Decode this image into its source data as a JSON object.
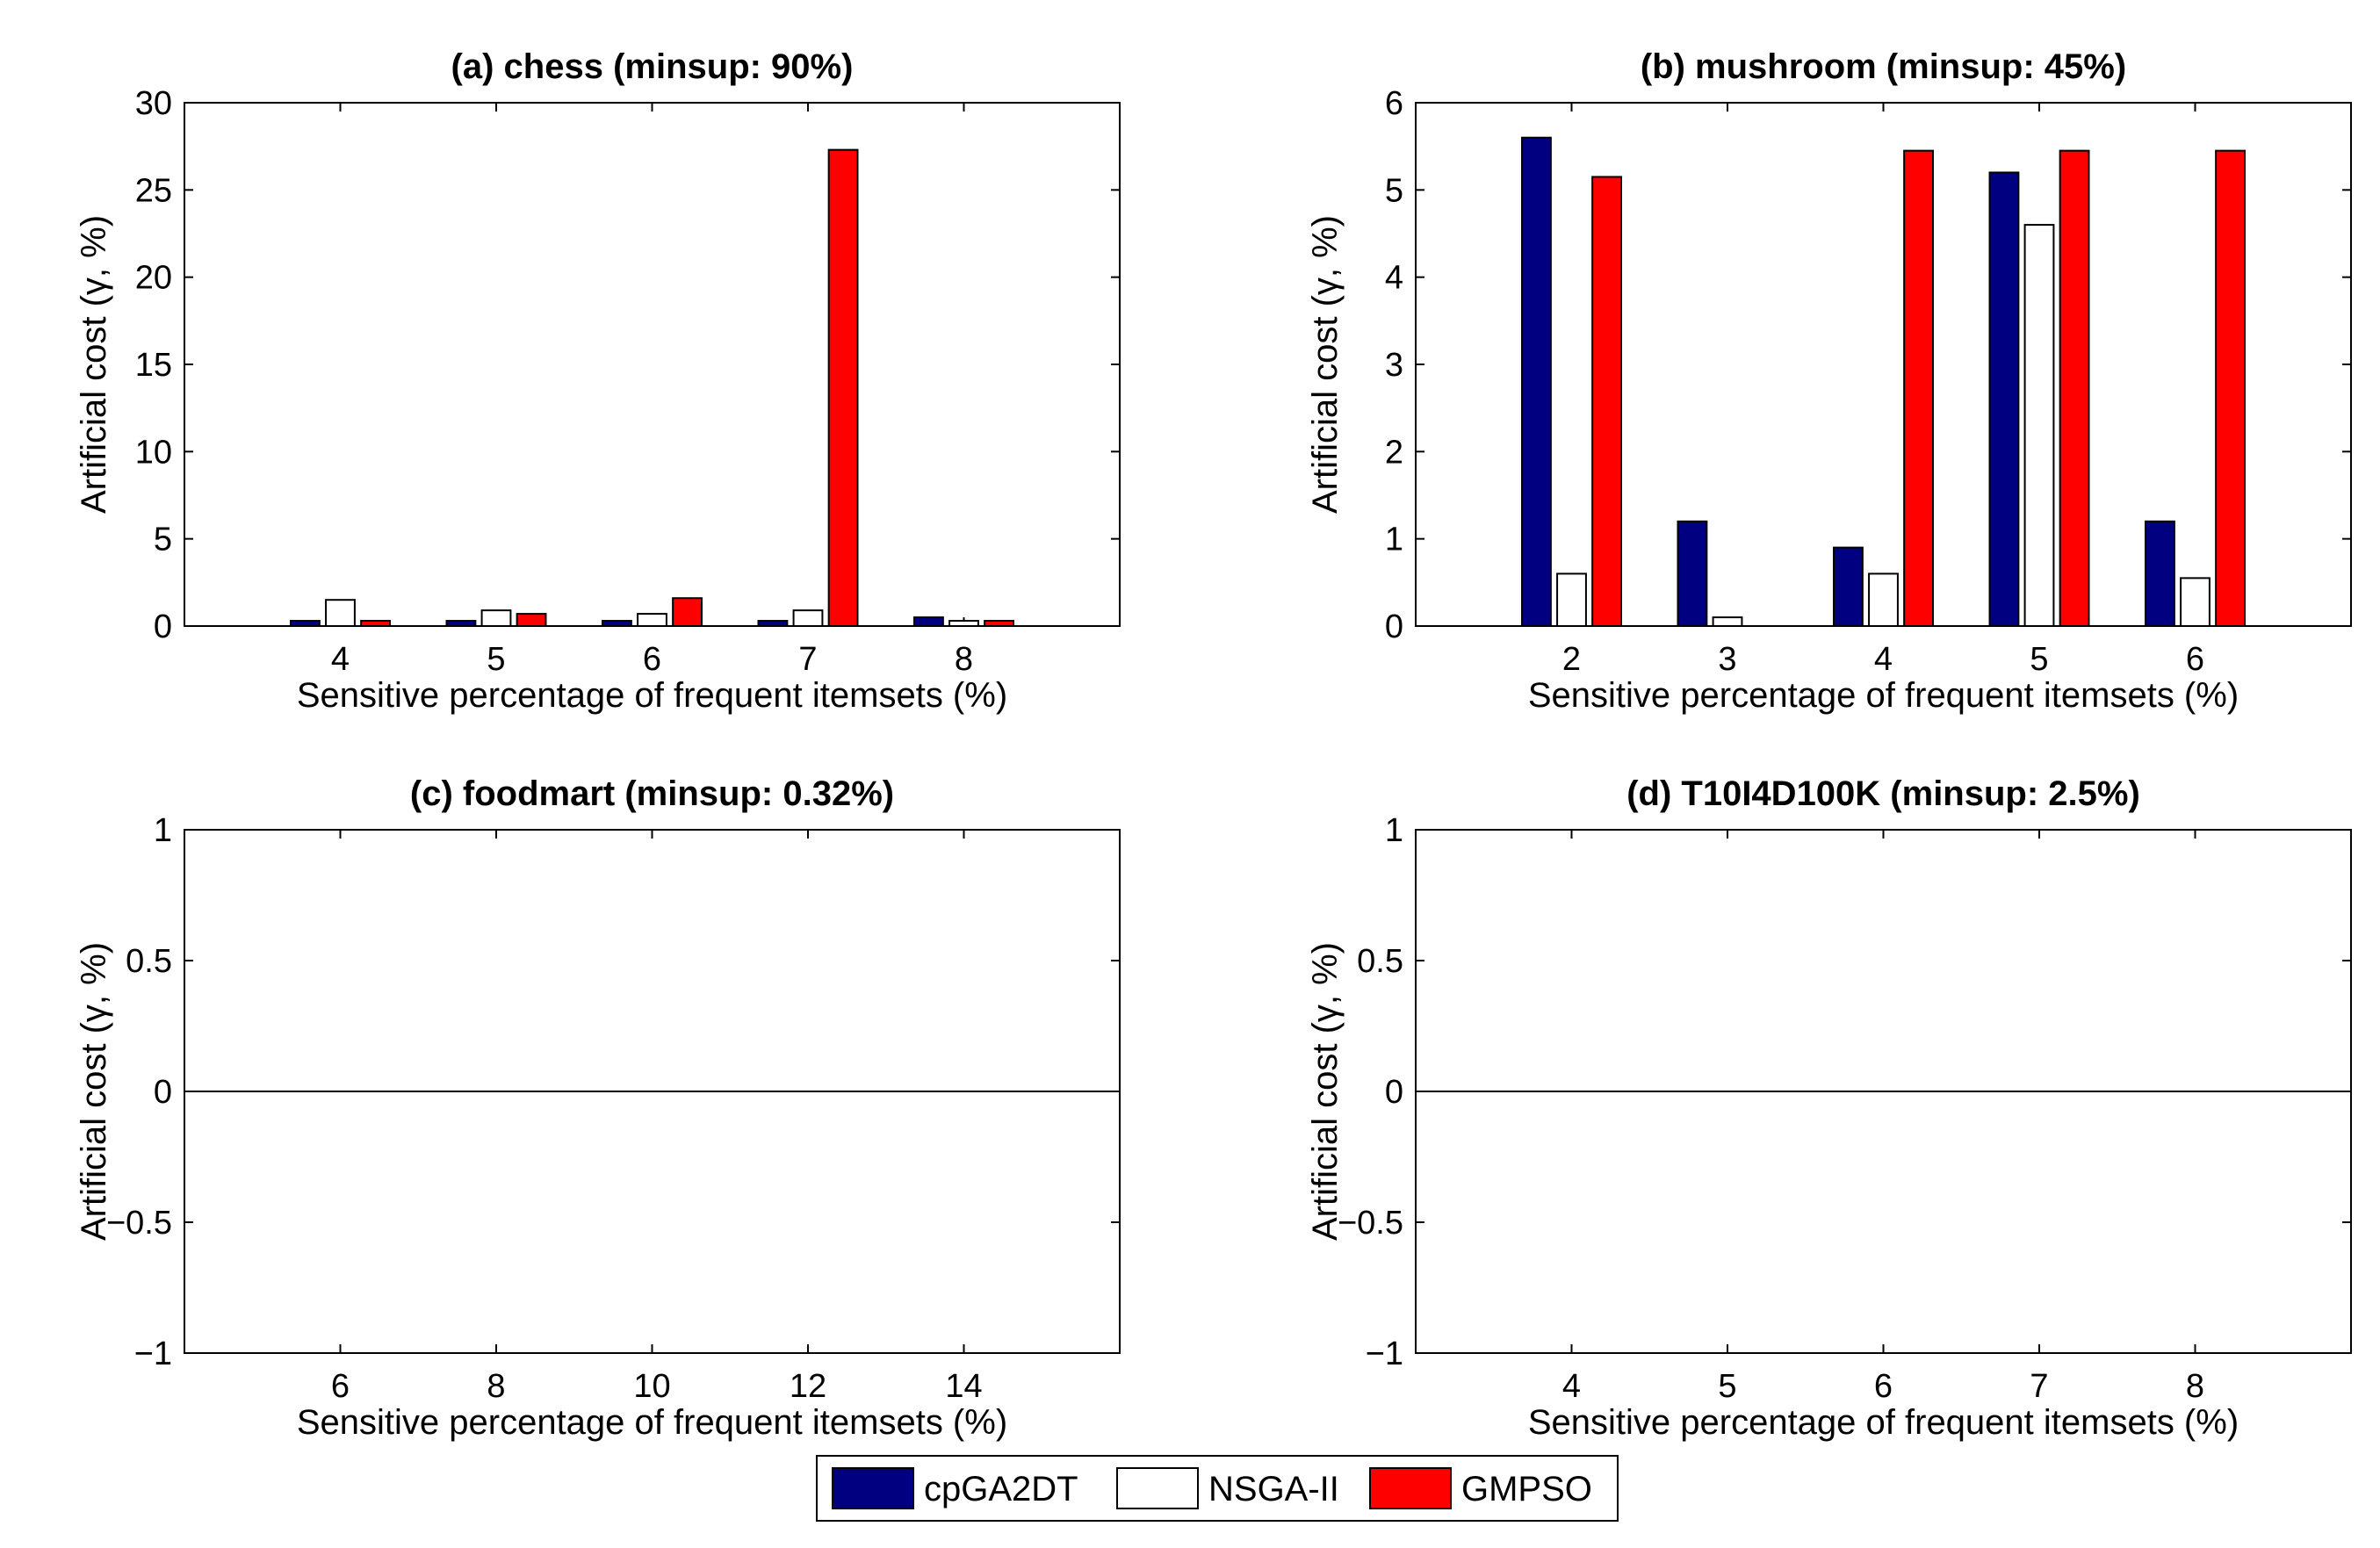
{
  "chart_data": [
    {
      "type": "bar",
      "title": "(a) chess (minsup: 90%)",
      "xlabel": "Sensitive percentage of frequent itemsets (%)",
      "ylabel": "Artificial cost (γ, %)",
      "categories": [
        "4",
        "5",
        "6",
        "7",
        "8"
      ],
      "xlim": [
        3,
        9
      ],
      "ylim": [
        0,
        30
      ],
      "yticks": [
        "0",
        "5",
        "10",
        "15",
        "20",
        "25",
        "30"
      ],
      "series": [
        {
          "name": "cpGA2DT",
          "values": [
            0.3,
            0.3,
            0.3,
            0.3,
            0.5
          ]
        },
        {
          "name": "NSGA-II",
          "values": [
            1.5,
            0.9,
            0.7,
            0.9,
            0.3
          ]
        },
        {
          "name": "GMPSO",
          "values": [
            0.3,
            0.7,
            1.6,
            27.3,
            0.3
          ]
        }
      ]
    },
    {
      "type": "bar",
      "title": "(b) mushroom (minsup: 45%)",
      "xlabel": "Sensitive percentage of frequent itemsets (%)",
      "ylabel": "Artificial cost (γ, %)",
      "categories": [
        "2",
        "3",
        "4",
        "5",
        "6"
      ],
      "xlim": [
        1,
        7
      ],
      "ylim": [
        0,
        6
      ],
      "yticks": [
        "0",
        "1",
        "2",
        "3",
        "4",
        "5",
        "6"
      ],
      "series": [
        {
          "name": "cpGA2DT",
          "values": [
            5.6,
            1.2,
            0.9,
            5.2,
            1.2
          ]
        },
        {
          "name": "NSGA-II",
          "values": [
            0.6,
            0.1,
            0.6,
            4.6,
            0.55
          ]
        },
        {
          "name": "GMPSO",
          "values": [
            5.15,
            0,
            5.45,
            5.45,
            5.45
          ]
        }
      ]
    },
    {
      "type": "bar",
      "title": "(c) foodmart (minsup: 0.32%)",
      "xlabel": "Sensitive percentage of frequent itemsets (%)",
      "ylabel": "Artificial cost (γ, %)",
      "categories": [
        "6",
        "8",
        "10",
        "12",
        "14"
      ],
      "xlim": [
        4,
        16
      ],
      "ylim": [
        -1,
        1
      ],
      "yticks": [
        "−1",
        "−0.5",
        "0",
        "0.5",
        "1"
      ],
      "series": [
        {
          "name": "cpGA2DT",
          "values": [
            0,
            0,
            0,
            0,
            0
          ]
        },
        {
          "name": "NSGA-II",
          "values": [
            0,
            0,
            0,
            0,
            0
          ]
        },
        {
          "name": "GMPSO",
          "values": [
            0,
            0,
            0,
            0,
            0
          ]
        }
      ]
    },
    {
      "type": "bar",
      "title": "(d) T10I4D100K (minsup: 2.5%)",
      "xlabel": "Sensitive percentage of frequent itemsets (%)",
      "ylabel": "Artificial cost (γ, %)",
      "categories": [
        "4",
        "5",
        "6",
        "7",
        "8"
      ],
      "xlim": [
        3,
        9
      ],
      "ylim": [
        -1,
        1
      ],
      "yticks": [
        "−1",
        "−0.5",
        "0",
        "0.5",
        "1"
      ],
      "series": [
        {
          "name": "cpGA2DT",
          "values": [
            0,
            0,
            0,
            0,
            0
          ]
        },
        {
          "name": "NSGA-II",
          "values": [
            0,
            0,
            0,
            0,
            0
          ]
        },
        {
          "name": "GMPSO",
          "values": [
            0,
            0,
            0,
            0,
            0
          ]
        }
      ]
    }
  ],
  "legend": {
    "position": "bottom-center",
    "entries": [
      {
        "label": "cpGA2DT",
        "color": "#000080"
      },
      {
        "label": "NSGA-II",
        "color": "#ffffff"
      },
      {
        "label": "GMPSO",
        "color": "#ff0000"
      }
    ]
  }
}
